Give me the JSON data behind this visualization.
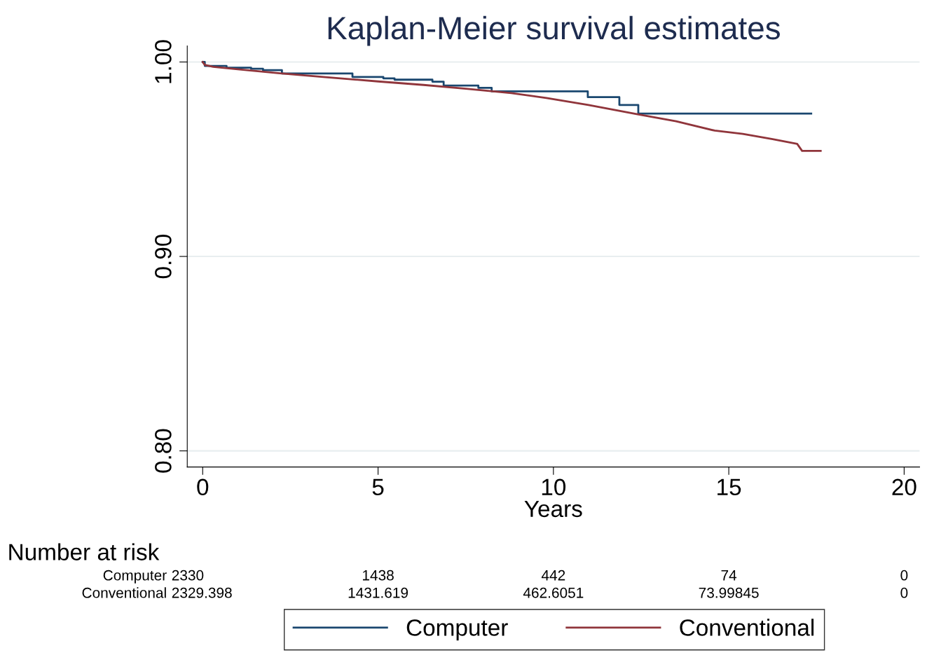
{
  "chart_data": {
    "type": "line",
    "title": "Kaplan-Meier survival estimates",
    "xlabel": "Years",
    "series": [
      {
        "name": "Computer",
        "color": "#1a476f",
        "type": "step",
        "x": [
          0,
          0.06,
          0.68,
          1.38,
          1.72,
          2.26,
          4.27,
          5.15,
          5.47,
          6.55,
          6.87,
          7.86,
          8.24,
          10.98,
          11.88,
          12.42,
          17.35
        ],
        "values": [
          1.0,
          0.998,
          0.9971,
          0.9965,
          0.9958,
          0.9941,
          0.9923,
          0.9916,
          0.9909,
          0.9899,
          0.9879,
          0.9867,
          0.9849,
          0.9819,
          0.9779,
          0.9735,
          0.9735
        ]
      },
      {
        "name": "Conventional",
        "color": "#90353b",
        "x": [
          0,
          0.06,
          0.3,
          1.0,
          2.2,
          3.5,
          5.0,
          6.3,
          7.5,
          8.8,
          9.8,
          11.0,
          12.4,
          13.5,
          14.6,
          15.4,
          16.25,
          16.95,
          17.09,
          17.62
        ],
        "values": [
          1.0,
          0.9985,
          0.9975,
          0.9963,
          0.9942,
          0.9922,
          0.99,
          0.9882,
          0.9863,
          0.984,
          0.9815,
          0.9779,
          0.9731,
          0.9695,
          0.9647,
          0.963,
          0.9603,
          0.9579,
          0.9543,
          0.9543
        ]
      }
    ],
    "xlim": [
      -0.44,
      20.44
    ],
    "ylim": [
      0.7917,
      1.0083
    ],
    "xticks": [
      0,
      5,
      10,
      15,
      20
    ],
    "yticks": [
      {
        "value": 0.8,
        "label": "0.80"
      },
      {
        "value": 0.9,
        "label": "0.90"
      },
      {
        "value": 1.0,
        "label": "1.00"
      }
    ],
    "grid": "y",
    "legend": "bottom",
    "annotations": [
      "Number at risk",
      "Computer",
      "2330",
      "1438",
      "442",
      "74",
      "0",
      "Conventional",
      "2329.398",
      "1431.619",
      "462.6051",
      "73.99845",
      "0"
    ]
  }
}
